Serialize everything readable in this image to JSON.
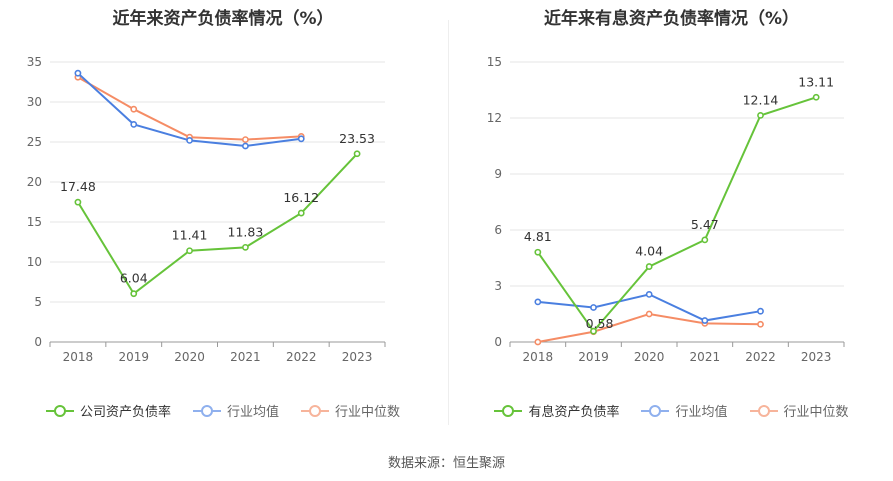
{
  "colors": {
    "company": "#66c33a",
    "industry_avg": "#4a7fe0",
    "industry_median": "#f58c65"
  },
  "source": "数据来源：恒生聚源",
  "chart_data": [
    {
      "type": "line",
      "title": "近年来资产负债率情况（%）",
      "categories": [
        "2018",
        "2019",
        "2020",
        "2021",
        "2022",
        "2023"
      ],
      "ylim": [
        0,
        35
      ],
      "yticks": [
        0,
        5,
        10,
        15,
        20,
        25,
        30,
        35
      ],
      "grid": true,
      "legend_position": "bottom",
      "series": [
        {
          "name": "公司资产负债率",
          "color": "#66c33a",
          "values": [
            17.48,
            6.04,
            11.41,
            11.83,
            16.12,
            23.53
          ],
          "labels": [
            "17.48",
            "6.04",
            "11.41",
            "11.83",
            "16.12",
            "23.53"
          ]
        },
        {
          "name": "行业均值",
          "color": "#4a7fe0",
          "values": [
            33.6,
            27.2,
            25.2,
            24.5,
            25.4,
            null
          ]
        },
        {
          "name": "行业中位数",
          "color": "#f58c65",
          "values": [
            33.1,
            29.1,
            25.6,
            25.3,
            25.7,
            null
          ]
        }
      ]
    },
    {
      "type": "line",
      "title": "近年来有息资产负债率情况（%）",
      "categories": [
        "2018",
        "2019",
        "2020",
        "2021",
        "2022",
        "2023"
      ],
      "ylim": [
        0,
        15
      ],
      "yticks": [
        0,
        3,
        6,
        9,
        12,
        15
      ],
      "grid": true,
      "legend_position": "bottom",
      "series": [
        {
          "name": "有息资产负债率",
          "color": "#66c33a",
          "values": [
            4.81,
            0.58,
            4.04,
            5.47,
            12.14,
            13.11
          ],
          "labels": [
            "4.81",
            "0.58",
            "4.04",
            "5.47",
            "12.14",
            "13.11"
          ]
        },
        {
          "name": "行业均值",
          "color": "#4a7fe0",
          "values": [
            2.15,
            1.85,
            2.55,
            1.15,
            1.65,
            null
          ]
        },
        {
          "name": "行业中位数",
          "color": "#f58c65",
          "values": [
            0.0,
            0.55,
            1.5,
            1.0,
            0.95,
            null
          ]
        }
      ]
    }
  ]
}
